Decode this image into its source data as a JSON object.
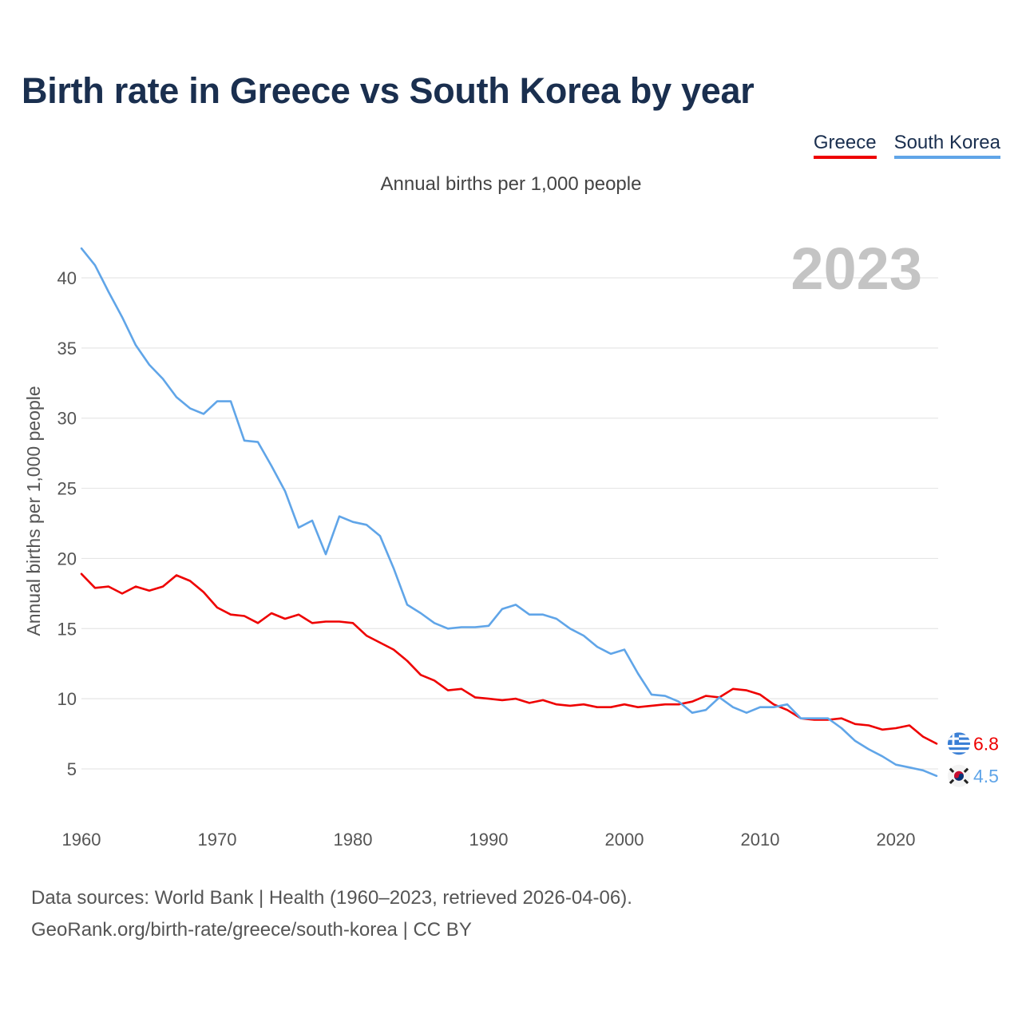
{
  "title": "Birth rate in Greece vs South Korea by year",
  "subtitle": "Annual births per 1,000 people",
  "footer": {
    "line1": "Data sources: World Bank | Health (1960–2023, retrieved 2026-04-06).",
    "line2": "GeoRank.org/birth-rate/greece/south-korea | CC BY"
  },
  "chart_data": {
    "type": "line",
    "title": "Birth rate in Greece vs South Korea by year",
    "ylabel": "Annual births per 1,000 people",
    "xlabel": "",
    "current_year": "2023",
    "xlim": [
      1960,
      2023
    ],
    "ylim": [
      3,
      42.5
    ],
    "x_ticks": [
      1960,
      1970,
      1980,
      1990,
      2000,
      2010,
      2020
    ],
    "y_ticks": [
      5,
      10,
      15,
      20,
      25,
      30,
      35,
      40
    ],
    "grid": true,
    "legend_position": "top-right",
    "x": [
      1960,
      1961,
      1962,
      1963,
      1964,
      1965,
      1966,
      1967,
      1968,
      1969,
      1970,
      1971,
      1972,
      1973,
      1974,
      1975,
      1976,
      1977,
      1978,
      1979,
      1980,
      1981,
      1982,
      1983,
      1984,
      1985,
      1986,
      1987,
      1988,
      1989,
      1990,
      1991,
      1992,
      1993,
      1994,
      1995,
      1996,
      1997,
      1998,
      1999,
      2000,
      2001,
      2002,
      2003,
      2004,
      2005,
      2006,
      2007,
      2008,
      2009,
      2010,
      2011,
      2012,
      2013,
      2014,
      2015,
      2016,
      2017,
      2018,
      2019,
      2020,
      2021,
      2022,
      2023
    ],
    "series": [
      {
        "name": "Greece",
        "color": "#ee0000",
        "end_label": "6.8",
        "flag": "greece-flag-icon",
        "values": [
          18.9,
          17.9,
          18.0,
          17.5,
          18.0,
          17.7,
          18.0,
          18.8,
          18.4,
          17.6,
          16.5,
          16.0,
          15.9,
          15.4,
          16.1,
          15.7,
          16.0,
          15.4,
          15.5,
          15.5,
          15.4,
          14.5,
          14.0,
          13.5,
          12.7,
          11.7,
          11.3,
          10.6,
          10.7,
          10.1,
          10.0,
          9.9,
          10.0,
          9.7,
          9.9,
          9.6,
          9.5,
          9.6,
          9.4,
          9.4,
          9.6,
          9.4,
          9.5,
          9.6,
          9.6,
          9.8,
          10.2,
          10.1,
          10.7,
          10.6,
          10.3,
          9.6,
          9.2,
          8.6,
          8.5,
          8.5,
          8.6,
          8.2,
          8.1,
          7.8,
          7.9,
          8.1,
          7.3,
          6.8
        ]
      },
      {
        "name": "South Korea",
        "color": "#60a5e8",
        "end_label": "4.5",
        "flag": "south-korea-flag-icon",
        "values": [
          42.1,
          40.9,
          39.0,
          37.2,
          35.2,
          33.8,
          32.8,
          31.5,
          30.7,
          30.3,
          31.2,
          31.2,
          28.4,
          28.3,
          26.6,
          24.8,
          22.2,
          22.7,
          20.3,
          23.0,
          22.6,
          22.4,
          21.6,
          19.3,
          16.7,
          16.1,
          15.4,
          15.0,
          15.1,
          15.1,
          15.2,
          16.4,
          16.7,
          16.0,
          16.0,
          15.7,
          15.0,
          14.5,
          13.7,
          13.2,
          13.5,
          11.8,
          10.3,
          10.2,
          9.8,
          9.0,
          9.2,
          10.1,
          9.4,
          9.0,
          9.4,
          9.4,
          9.6,
          8.6,
          8.6,
          8.6,
          7.9,
          7.0,
          6.4,
          5.9,
          5.3,
          5.1,
          4.9,
          4.5
        ]
      }
    ]
  }
}
